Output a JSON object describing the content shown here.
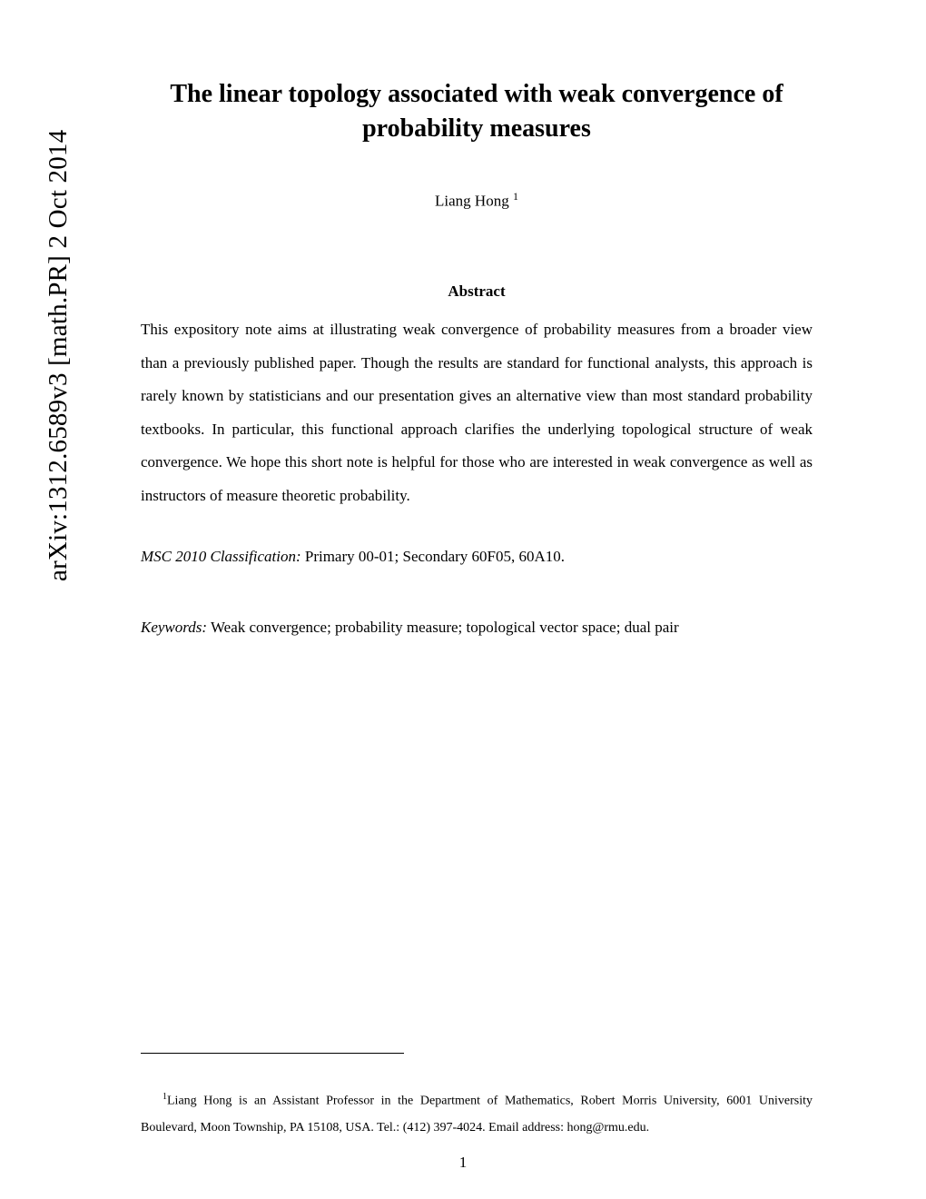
{
  "arxiv": "arXiv:1312.6589v3  [math.PR]  2 Oct 2014",
  "title": "The linear topology associated with weak convergence of probability measures",
  "author": "Liang Hong ",
  "author_sup": "1",
  "abstract_heading": "Abstract",
  "abstract_body": "This expository note aims at illustrating weak convergence of probability measures from a broader view than a previously published paper. Though the results are standard for functional analysts, this approach is rarely known by statisticians and our presentation gives an alternative view than most standard probability textbooks. In particular, this functional approach clarifies the underlying topological structure of weak convergence. We hope this short note is helpful for those who are interested in weak convergence as well as instructors of measure theoretic probability.",
  "msc_label": "MSC 2010 Classification:",
  "msc_value": " Primary 00-01; Secondary 60F05, 60A10.",
  "keywords_label": "Keywords:",
  "keywords_value": " Weak convergence; probability measure; topological vector space; dual pair",
  "footnote_sup": "1",
  "footnote_body": "Liang Hong is an Assistant Professor in the Department of Mathematics, Robert Morris University, 6001 University Boulevard, Moon Township, PA 15108, USA. Tel.: (412) 397-4024. Email address: hong@rmu.edu.",
  "page_number": "1"
}
